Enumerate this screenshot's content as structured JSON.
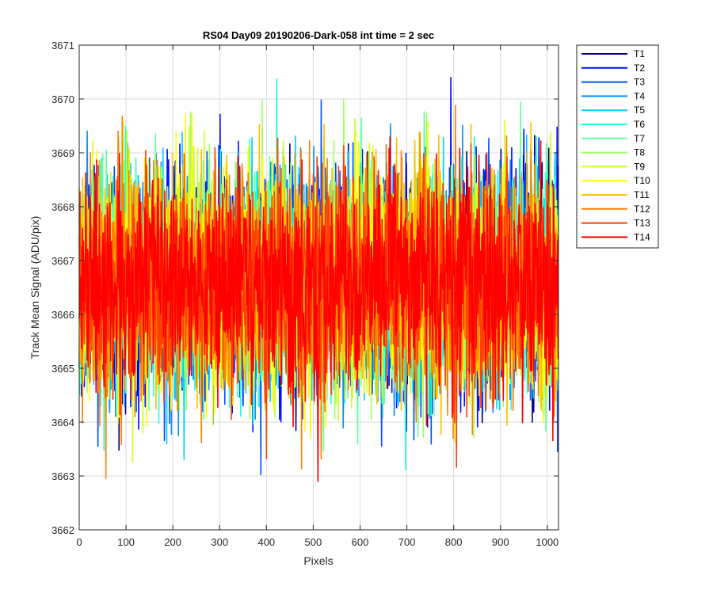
{
  "chart_data": {
    "type": "line",
    "title": "RS04 Day09 20190206-Dark-058 int time = 2 sec",
    "xlabel": "Pixels",
    "ylabel": "Track Mean Signal (ADU/pix)",
    "xlim": [
      0,
      1024
    ],
    "ylim": [
      3662,
      3671
    ],
    "xticks": [
      "0",
      "100",
      "200",
      "300",
      "400",
      "500",
      "600",
      "700",
      "800",
      "900",
      "1000"
    ],
    "yticks": [
      "3662",
      "3663",
      "3664",
      "3665",
      "3666",
      "3667",
      "3668",
      "3669",
      "3670",
      "3671"
    ],
    "grid": true,
    "legend_position": "outside-top-right",
    "noise_model": {
      "n_points_per_series": 1024,
      "mean": 3666.6,
      "std_dev": 1.0,
      "min_observed": 3662.9,
      "max_observed": 3670.4
    },
    "series": [
      {
        "name": "T1",
        "color": "#00008f"
      },
      {
        "name": "T2",
        "color": "#0010ff"
      },
      {
        "name": "T3",
        "color": "#0050ff"
      },
      {
        "name": "T4",
        "color": "#0090ff"
      },
      {
        "name": "T5",
        "color": "#00d0ff"
      },
      {
        "name": "T6",
        "color": "#20ffe0"
      },
      {
        "name": "T7",
        "color": "#60ffa0"
      },
      {
        "name": "T8",
        "color": "#a0ff60"
      },
      {
        "name": "T9",
        "color": "#d0ff20"
      },
      {
        "name": "T10",
        "color": "#ffff00"
      },
      {
        "name": "T11",
        "color": "#ffc000"
      },
      {
        "name": "T12",
        "color": "#ff8000"
      },
      {
        "name": "T13",
        "color": "#ff4000"
      },
      {
        "name": "T14",
        "color": "#ff0000"
      }
    ]
  }
}
